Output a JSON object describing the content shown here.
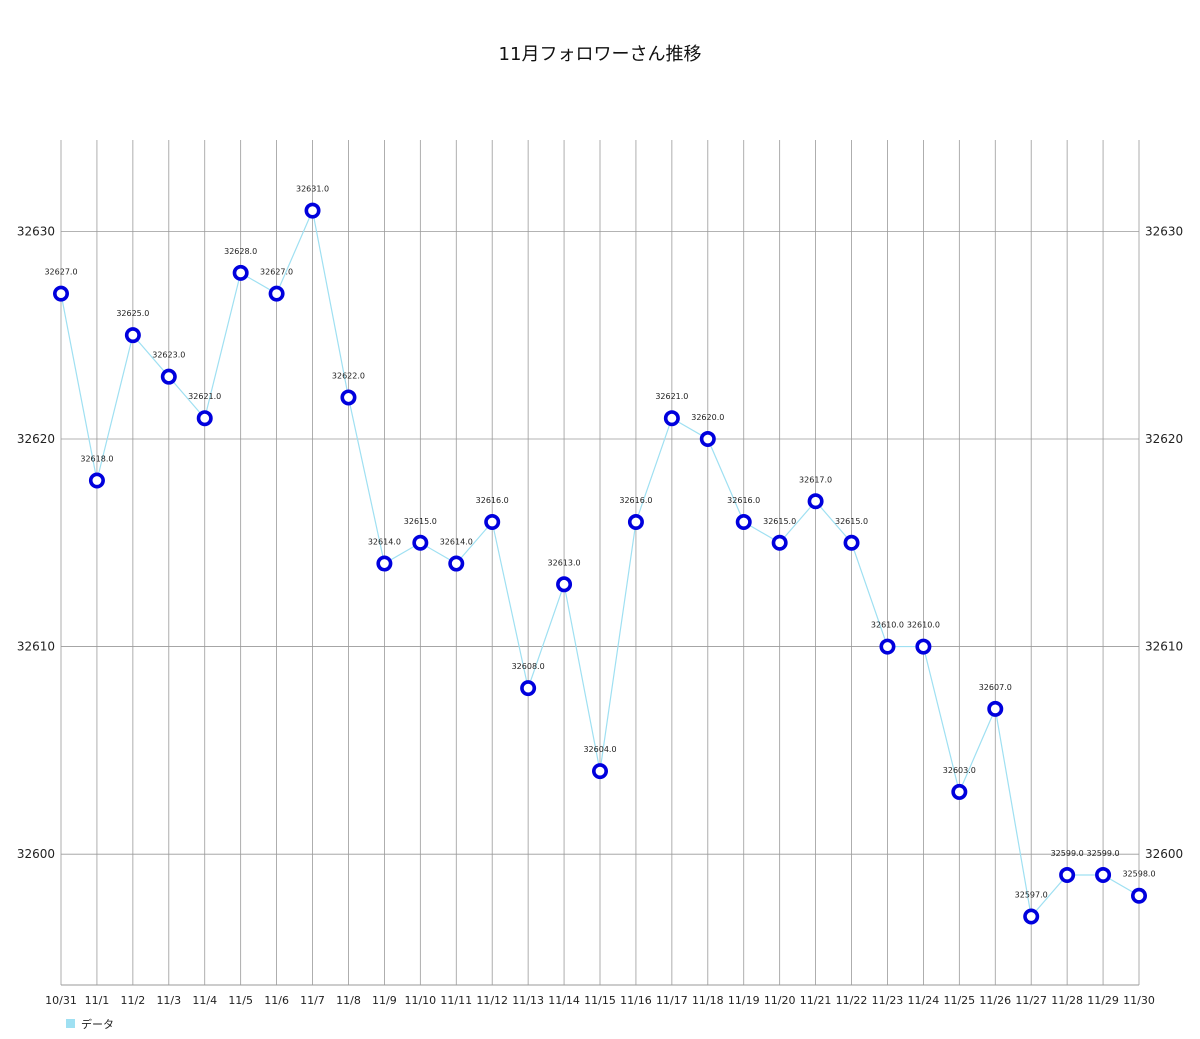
{
  "chart_data": {
    "type": "line",
    "title": "11月フォロワーさん推移",
    "xlabel": "",
    "ylabel": "",
    "categories": [
      "10/31",
      "11/1",
      "11/2",
      "11/3",
      "11/4",
      "11/5",
      "11/6",
      "11/7",
      "11/8",
      "11/9",
      "11/10",
      "11/11",
      "11/12",
      "11/13",
      "11/14",
      "11/15",
      "11/16",
      "11/17",
      "11/18",
      "11/19",
      "11/20",
      "11/21",
      "11/22",
      "11/23",
      "11/24",
      "11/25",
      "11/26",
      "11/27",
      "11/28",
      "11/29",
      "11/30"
    ],
    "series": [
      {
        "name": "データ",
        "values": [
          32627,
          32618,
          32625,
          32623,
          32621,
          32628,
          32627,
          32631,
          32622,
          32614,
          32615,
          32614,
          32616,
          32608,
          32613,
          32604,
          32616,
          32621,
          32620,
          32616,
          32615,
          32617,
          32615,
          32610,
          32610,
          32603,
          32607,
          32597,
          32599,
          32599,
          32598
        ]
      }
    ],
    "data_labels": [
      "32627.0",
      "32618.0",
      "32625.0",
      "32623.0",
      "32621.0",
      "32628.0",
      "32627.0",
      "32631.0",
      "32622.0",
      "32614.0",
      "32615.0",
      "32614.0",
      "32616.0",
      "32608.0",
      "32613.0",
      "32604.0",
      "32616.0",
      "32621.0",
      "32620.0",
      "32616.0",
      "32615.0",
      "32617.0",
      "32615.0",
      "32610.0",
      "32610.0",
      "32603.0",
      "32607.0",
      "32597.0",
      "32599.0",
      "32599.0",
      "32598.0"
    ],
    "yticks": [
      32600,
      32610,
      32620,
      32630
    ],
    "ylim": [
      32593.7,
      32634.4
    ],
    "grid": true,
    "legend_position": "bottom-left",
    "colors": {
      "line": "#9fe0f2",
      "marker_stroke": "#0000dd",
      "marker_fill": "#ffffff",
      "grid": "#9a9a9a",
      "legend_swatch": "#9fe0f2"
    }
  }
}
